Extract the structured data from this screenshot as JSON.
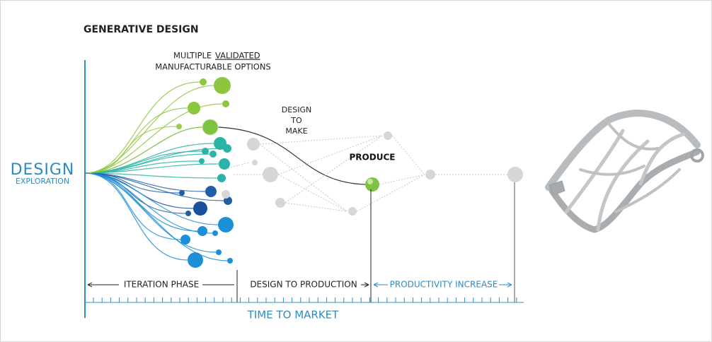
{
  "header": {
    "title": "GENERATIVE DESIGN"
  },
  "axis": {
    "main": "DESIGN",
    "sub": "EXPLORATION"
  },
  "options_label": {
    "prefix": "MULTIPLE",
    "emphasis": "VALIDATED",
    "line2": "MANUFACTURABLE OPTIONS"
  },
  "design_to_make": {
    "lines": [
      "DESIGN",
      "TO",
      "MAKE"
    ]
  },
  "produce": "PRODUCE",
  "phases": {
    "iteration": "ITERATION PHASE",
    "production": "DESIGN TO PRODUCTION",
    "productivity": "PRODUCTIVITY INCREASE"
  },
  "footer": "TIME TO MARKET"
}
